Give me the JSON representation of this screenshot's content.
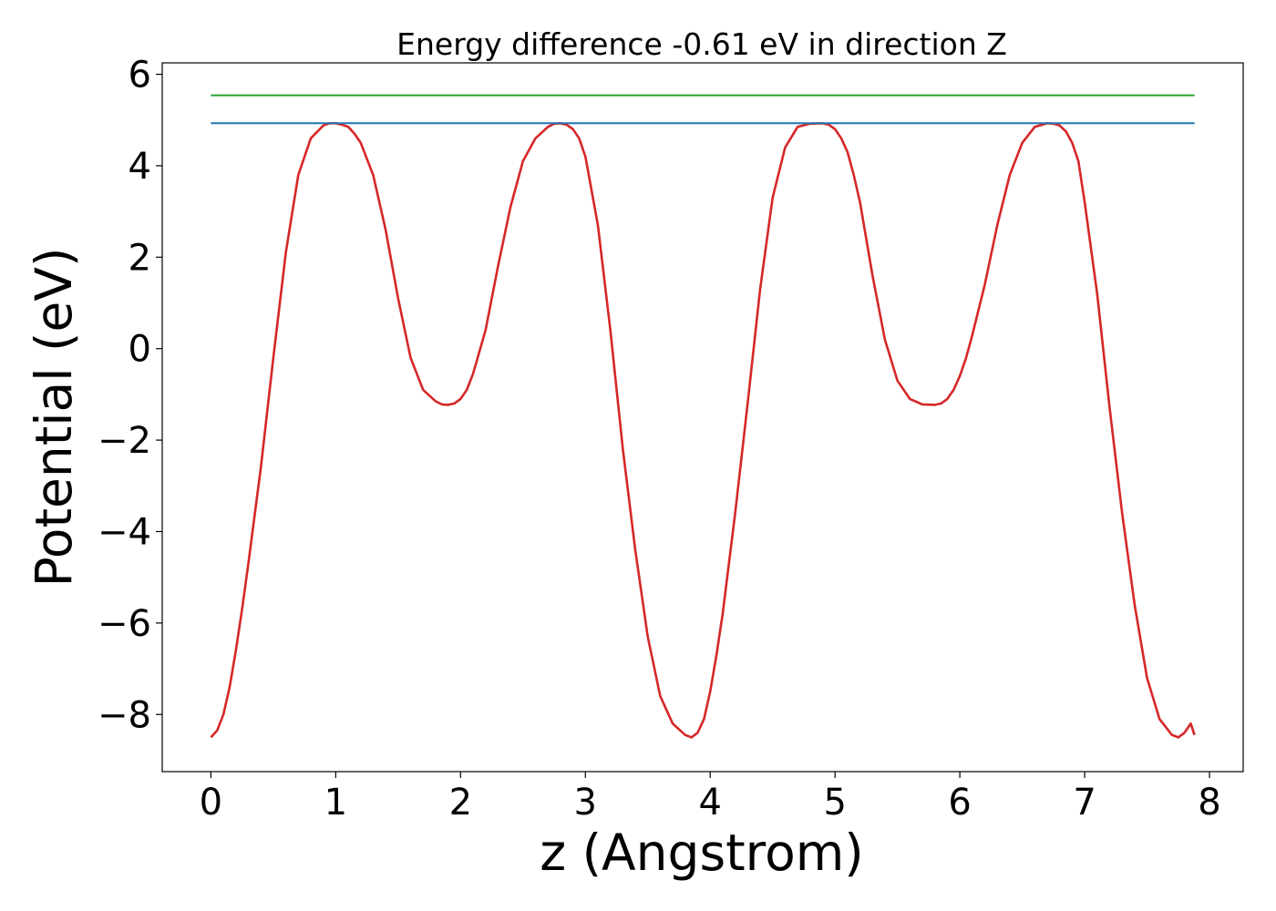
{
  "chart_data": {
    "type": "line",
    "title": "Energy difference -0.61 eV in direction Z",
    "xlabel": "z (Angstrom)",
    "ylabel": "Potential (eV)",
    "xlim": [
      -0.39,
      8.27
    ],
    "ylim": [
      -9.25,
      6.25
    ],
    "xticks": [
      "0",
      "1",
      "2",
      "3",
      "4",
      "5",
      "6",
      "7",
      "8"
    ],
    "yticks": [
      "−8",
      "−6",
      "−4",
      "−2",
      "0",
      "2",
      "4",
      "6"
    ],
    "grid": false,
    "series": [
      {
        "color": "#d62728",
        "x": [
          0.0,
          0.05,
          0.1,
          0.15,
          0.2,
          0.25,
          0.3,
          0.4,
          0.5,
          0.6,
          0.7,
          0.8,
          0.9,
          0.95,
          1.0,
          1.05,
          1.1,
          1.15,
          1.2,
          1.3,
          1.4,
          1.5,
          1.6,
          1.7,
          1.8,
          1.85,
          1.9,
          1.95,
          2.0,
          2.05,
          2.1,
          2.2,
          2.3,
          2.4,
          2.5,
          2.6,
          2.7,
          2.75,
          2.8,
          2.85,
          2.9,
          2.95,
          3.0,
          3.1,
          3.2,
          3.3,
          3.4,
          3.5,
          3.6,
          3.7,
          3.8,
          3.85,
          3.9,
          3.95,
          4.0,
          4.05,
          4.1,
          4.2,
          4.3,
          4.4,
          4.5,
          4.6,
          4.7,
          4.8,
          4.9,
          4.95,
          5.0,
          5.05,
          5.1,
          5.15,
          5.2,
          5.3,
          5.4,
          5.5,
          5.6,
          5.7,
          5.8,
          5.85,
          5.9,
          5.95,
          6.0,
          6.05,
          6.1,
          6.2,
          6.3,
          6.4,
          6.5,
          6.6,
          6.7,
          6.75,
          6.8,
          6.85,
          6.9,
          6.95,
          7.0,
          7.1,
          7.2,
          7.3,
          7.4,
          7.5,
          7.6,
          7.7,
          7.75,
          7.8,
          7.85,
          7.88
        ],
        "y": [
          -8.5,
          -8.35,
          -8.0,
          -7.4,
          -6.6,
          -5.7,
          -4.7,
          -2.6,
          -0.2,
          2.1,
          3.8,
          4.6,
          4.88,
          4.93,
          4.93,
          4.9,
          4.85,
          4.7,
          4.5,
          3.8,
          2.6,
          1.1,
          -0.2,
          -0.9,
          -1.15,
          -1.22,
          -1.23,
          -1.2,
          -1.1,
          -0.9,
          -0.55,
          0.4,
          1.8,
          3.1,
          4.1,
          4.6,
          4.85,
          4.92,
          4.93,
          4.9,
          4.8,
          4.6,
          4.2,
          2.7,
          0.4,
          -2.2,
          -4.4,
          -6.3,
          -7.6,
          -8.2,
          -8.45,
          -8.5,
          -8.4,
          -8.1,
          -7.5,
          -6.7,
          -5.8,
          -3.6,
          -1.2,
          1.3,
          3.3,
          4.4,
          4.85,
          4.92,
          4.93,
          4.9,
          4.8,
          4.6,
          4.3,
          3.8,
          3.2,
          1.6,
          0.2,
          -0.7,
          -1.1,
          -1.22,
          -1.23,
          -1.2,
          -1.1,
          -0.9,
          -0.6,
          -0.2,
          0.3,
          1.4,
          2.7,
          3.8,
          4.5,
          4.85,
          4.93,
          4.92,
          4.88,
          4.75,
          4.5,
          4.1,
          3.2,
          1.2,
          -1.3,
          -3.6,
          -5.6,
          -7.2,
          -8.1,
          -8.45,
          -8.5,
          -8.4,
          -8.2,
          -8.45
        ]
      },
      {
        "color": "#1f77b4",
        "x": [
          0.0,
          7.88
        ],
        "y": [
          4.93,
          4.93
        ]
      },
      {
        "color": "#2ca02c",
        "x": [
          0.0,
          7.88
        ],
        "y": [
          5.54,
          5.54
        ]
      }
    ]
  }
}
